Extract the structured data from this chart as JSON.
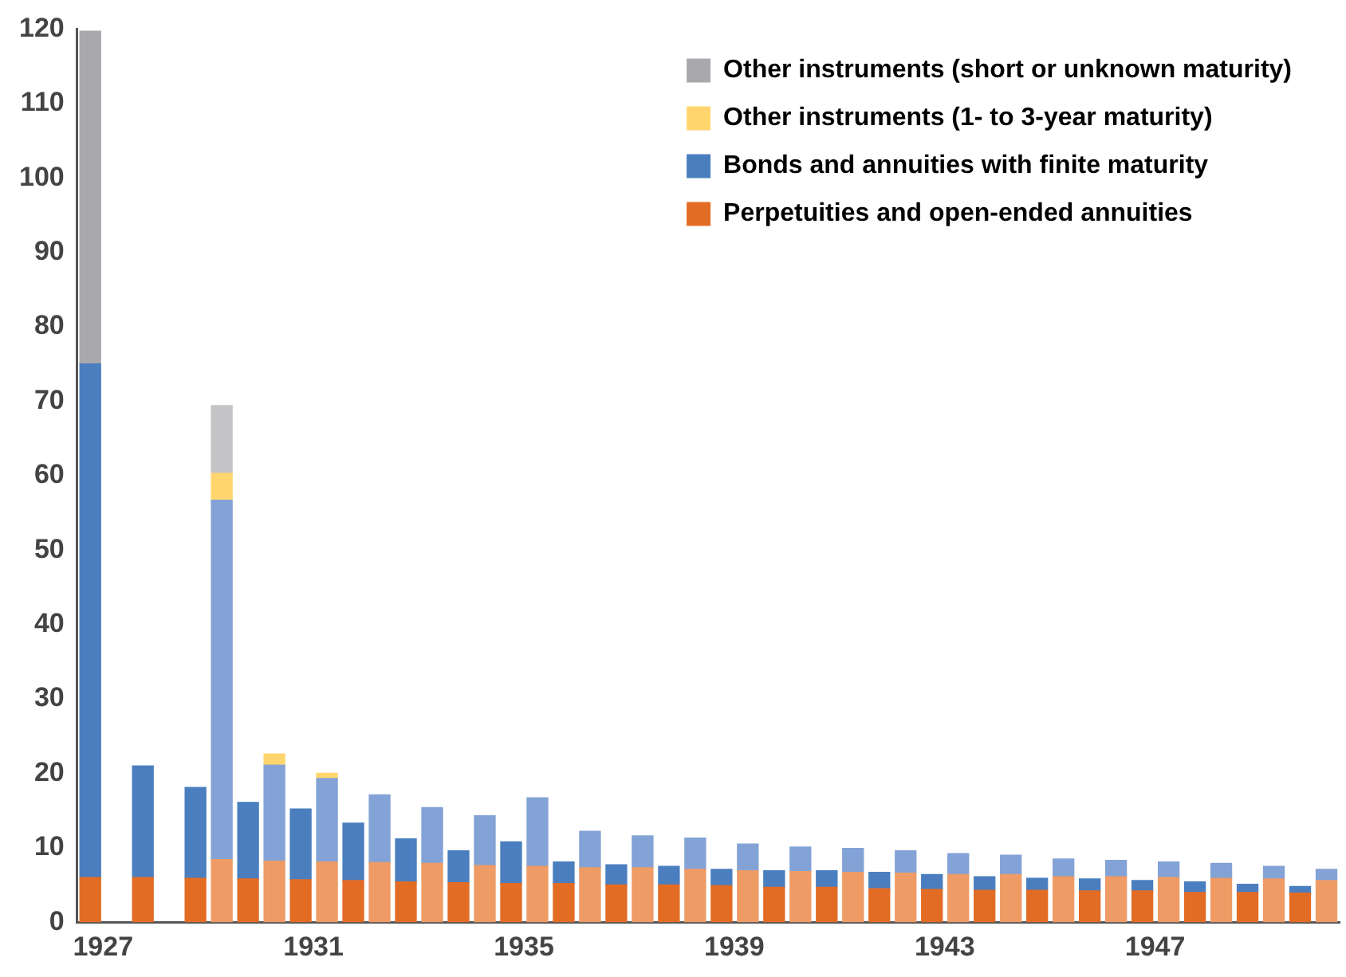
{
  "chart_data": {
    "type": "bar",
    "stacked": true,
    "categories": [
      "1927",
      null,
      null,
      null,
      null,
      null,
      null,
      null,
      "1931",
      null,
      null,
      null,
      null,
      null,
      null,
      null,
      "1935",
      null,
      null,
      null,
      null,
      null,
      null,
      null,
      "1939",
      null,
      null,
      null,
      null,
      null,
      null,
      null,
      "1943",
      null,
      null,
      null,
      null,
      null,
      null,
      null,
      "1947",
      null,
      null,
      null,
      null,
      null,
      null,
      null
    ],
    "ylim": [
      0,
      120
    ],
    "yticks": [
      0,
      10,
      20,
      30,
      40,
      50,
      60,
      70,
      80,
      90,
      100,
      110,
      120
    ],
    "grid": false,
    "legend": "top right",
    "series": [
      {
        "name": "Perpetuities and open-ended annuities",
        "color": "#e36c25",
        "colors": [
          "#e36c25",
          "#ee9b66",
          "#e36c25",
          "#ee9b66",
          "#e36c25",
          "#ee9b66",
          "#e36c25",
          "#ee9b66",
          "#e36c25",
          "#ee9b66",
          "#e36c25",
          "#ee9b66",
          "#e36c25",
          "#ee9b66",
          "#e36c25",
          "#ee9b66",
          "#e36c25",
          "#ee9b66",
          "#e36c25",
          "#ee9b66",
          "#e36c25",
          "#ee9b66",
          "#e36c25",
          "#ee9b66",
          "#e36c25",
          "#ee9b66",
          "#e36c25",
          "#ee9b66",
          "#e36c25",
          "#ee9b66",
          "#e36c25",
          "#ee9b66",
          "#e36c25",
          "#ee9b66",
          "#e36c25",
          "#ee9b66",
          "#e36c25",
          "#ee9b66",
          "#e36c25",
          "#ee9b66",
          "#e36c25",
          "#ee9b66",
          "#e36c25",
          "#ee9b66",
          "#e36c25",
          "#ee9b66",
          "#e36c25",
          "#ee9b66"
        ],
        "values": [
          6.0,
          null,
          6.0,
          null,
          5.9,
          8.4,
          5.8,
          8.2,
          5.7,
          8.1,
          5.6,
          8.0,
          5.4,
          7.9,
          5.3,
          7.6,
          5.2,
          7.5,
          5.2,
          7.3,
          5.0,
          7.3,
          5.0,
          7.1,
          4.9,
          6.9,
          4.7,
          6.8,
          4.7,
          6.7,
          4.5,
          6.6,
          4.4,
          6.4,
          4.3,
          6.4,
          4.3,
          6.1,
          4.2,
          6.1,
          4.2,
          6.0,
          4.0,
          5.9,
          4.0,
          5.8,
          3.9,
          5.6
        ]
      },
      {
        "name": "Bonds and annuities with finite maturity",
        "color": "#4a7ebf",
        "colors": [
          "#4a7ebf",
          "#83a2d6",
          "#4a7ebf",
          "#83a2d6",
          "#4a7ebf",
          "#83a2d6",
          "#4a7ebf",
          "#83a2d6",
          "#4a7ebf",
          "#83a2d6",
          "#4a7ebf",
          "#83a2d6",
          "#4a7ebf",
          "#83a2d6",
          "#4a7ebf",
          "#83a2d6",
          "#4a7ebf",
          "#83a2d6",
          "#4a7ebf",
          "#83a2d6",
          "#4a7ebf",
          "#83a2d6",
          "#4a7ebf",
          "#83a2d6",
          "#4a7ebf",
          "#83a2d6",
          "#4a7ebf",
          "#83a2d6",
          "#4a7ebf",
          "#83a2d6",
          "#4a7ebf",
          "#83a2d6",
          "#4a7ebf",
          "#83a2d6",
          "#4a7ebf",
          "#83a2d6",
          "#4a7ebf",
          "#83a2d6",
          "#4a7ebf",
          "#83a2d6",
          "#4a7ebf",
          "#83a2d6",
          "#4a7ebf",
          "#83a2d6",
          "#4a7ebf",
          "#83a2d6",
          "#4a7ebf",
          "#83a2d6"
        ],
        "values": [
          69,
          null,
          15,
          null,
          12.2,
          48.3,
          10.3,
          12.9,
          9.5,
          11.2,
          7.7,
          9.1,
          5.8,
          7.5,
          4.3,
          6.7,
          5.6,
          9.2,
          2.9,
          4.9,
          2.7,
          4.3,
          2.5,
          4.2,
          2.2,
          3.6,
          2.2,
          3.3,
          2.2,
          3.2,
          2.2,
          3.0,
          2.0,
          2.8,
          1.8,
          2.6,
          1.6,
          2.4,
          1.6,
          2.2,
          1.4,
          2.1,
          1.4,
          2.0,
          1.1,
          1.7,
          0.9,
          1.5
        ]
      },
      {
        "name": "Other instruments (1- to 3-year maturity)",
        "color": "#ffd66e",
        "values": [
          null,
          null,
          null,
          null,
          null,
          3.6,
          null,
          1.5,
          null,
          0.7,
          null,
          null,
          null,
          null,
          null,
          null,
          null,
          null,
          null,
          null,
          null,
          null,
          null,
          null,
          null,
          null,
          null,
          null,
          null,
          null,
          null,
          null,
          null,
          null,
          null,
          null,
          null,
          null,
          null,
          null,
          null,
          null,
          null,
          null,
          null,
          null,
          null,
          null
        ]
      },
      {
        "name": "Other instruments (short or unknown maturity)",
        "color": "#a9a9ad",
        "colors": [
          "#a9a9ad",
          "#c4c4c6",
          "#a9a9ad",
          "#c4c4c6",
          "#a9a9ad",
          "#c4c4c6",
          "#a9a9ad",
          "#c4c4c6",
          "#a9a9ad",
          "#c4c4c6",
          "#a9a9ad",
          "#c4c4c6",
          "#a9a9ad",
          "#c4c4c6",
          "#a9a9ad",
          "#c4c4c6",
          "#a9a9ad",
          "#c4c4c6",
          "#a9a9ad",
          "#c4c4c6",
          "#a9a9ad",
          "#c4c4c6",
          "#a9a9ad",
          "#c4c4c6",
          "#a9a9ad",
          "#c4c4c6",
          "#a9a9ad",
          "#c4c4c6",
          "#a9a9ad",
          "#c4c4c6",
          "#a9a9ad",
          "#c4c4c6",
          "#a9a9ad",
          "#c4c4c6",
          "#a9a9ad",
          "#c4c4c6",
          "#a9a9ad",
          "#c4c4c6",
          "#a9a9ad",
          "#c4c4c6",
          "#a9a9ad",
          "#c4c4c6",
          "#a9a9ad",
          "#c4c4c6",
          "#a9a9ad",
          "#c4c4c6",
          "#a9a9ad",
          "#c4c4c6"
        ],
        "values": [
          44.7,
          null,
          null,
          null,
          null,
          9.1,
          null,
          null,
          null,
          null,
          null,
          null,
          null,
          null,
          null,
          null,
          null,
          null,
          null,
          null,
          null,
          null,
          null,
          null,
          null,
          null,
          null,
          null,
          null,
          null,
          null,
          null,
          null,
          null,
          null,
          null,
          null,
          null,
          null,
          null,
          null,
          null,
          null,
          null,
          null,
          null,
          null,
          null
        ]
      }
    ]
  }
}
